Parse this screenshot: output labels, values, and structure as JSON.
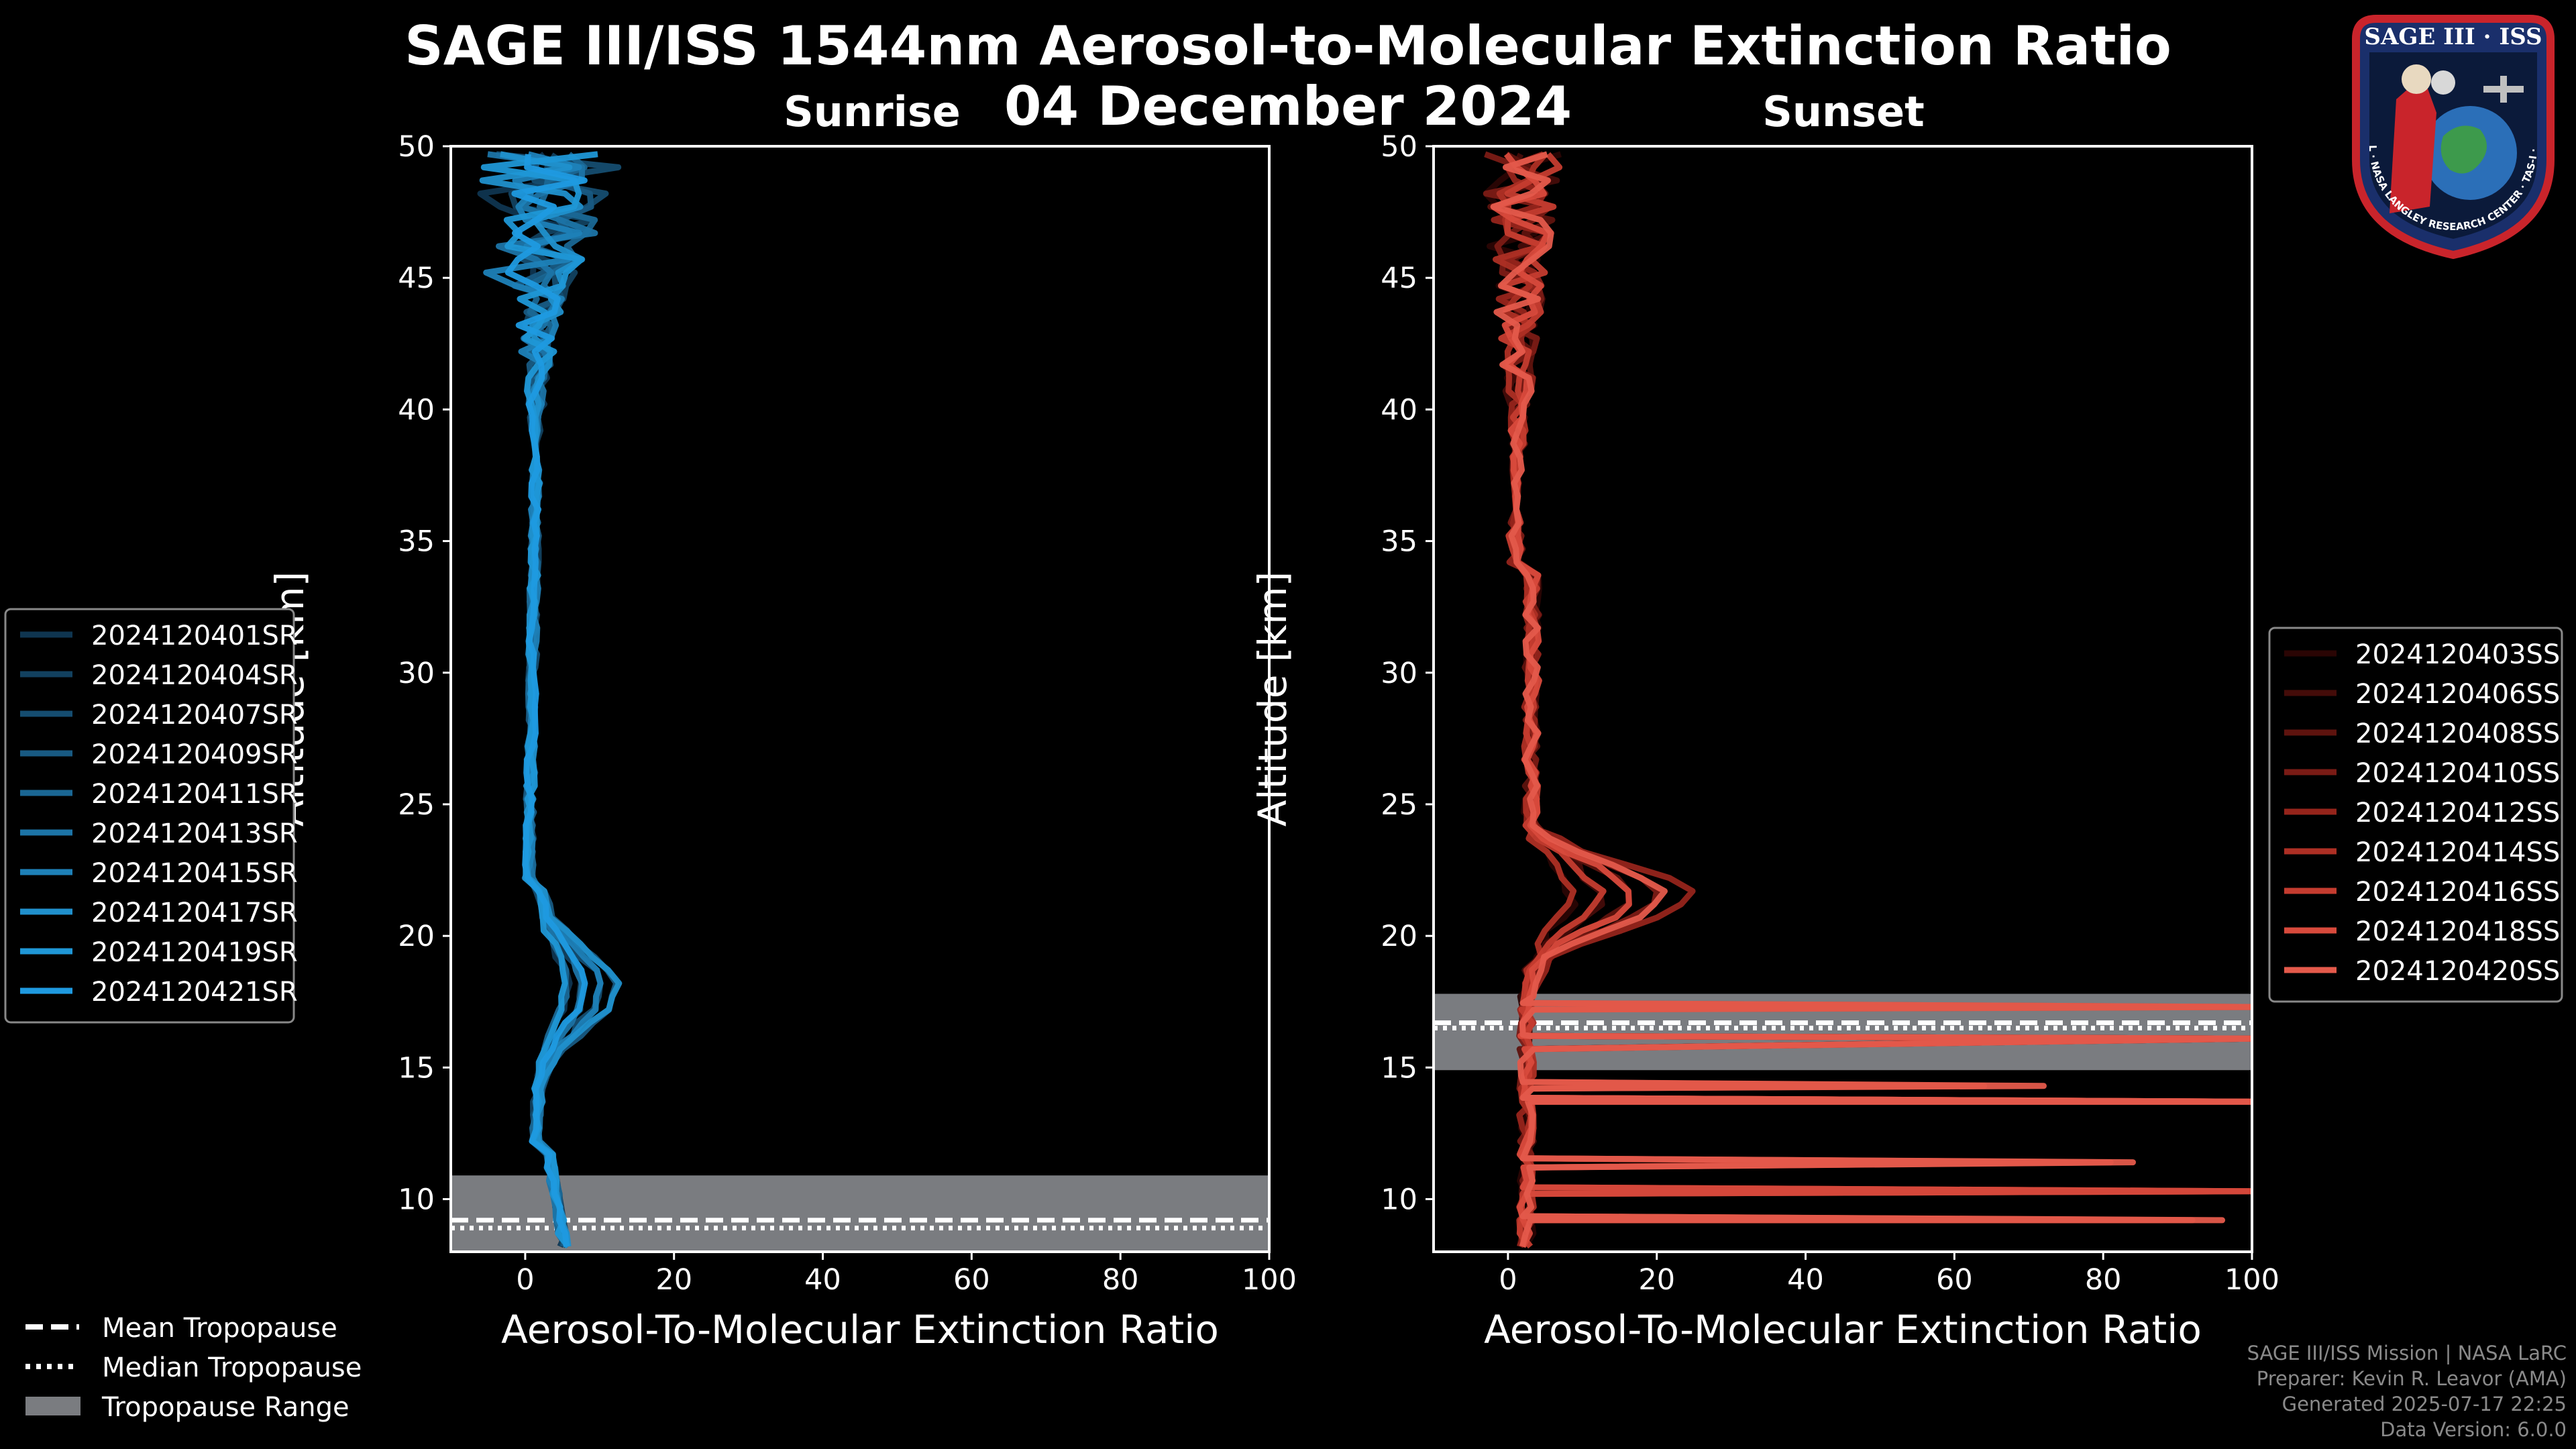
{
  "title": "SAGE III/ISS 1544nm Aerosol-to-Molecular Extinction Ratio",
  "date": "04 December 2024",
  "logo": {
    "top_text": "SAGE III · ISS",
    "ring_text": "BALL · NASA LANGLEY RESEARCH CENTER · TAS-I · ESA"
  },
  "credits": {
    "line1": "SAGE III/ISS Mission | NASA LaRC",
    "line2": "Preparer: Kevin R. Leavor (AMA)",
    "line3": "Generated 2025-07-17 22:25",
    "line4": "Data Version: 6.0.0"
  },
  "tropopause_legend": [
    {
      "label": "Mean Tropopause",
      "style": "dashed"
    },
    {
      "label": "Median Tropopause",
      "style": "dotted"
    },
    {
      "label": "Tropopause Range",
      "style": "patch"
    }
  ],
  "chart_data": [
    {
      "type": "line",
      "panel": "sunrise",
      "title": "Sunrise",
      "xlabel": "Aerosol-To-Molecular Extinction Ratio",
      "ylabel": "Altitude [km]",
      "xlim": [
        -10,
        100
      ],
      "ylim": [
        8,
        50
      ],
      "xticks": [
        0,
        20,
        40,
        60,
        80,
        100
      ],
      "yticks": [
        10,
        15,
        20,
        25,
        30,
        35,
        40,
        45,
        50
      ],
      "tropopause": {
        "range": [
          8,
          10.9
        ],
        "mean": 9.2,
        "median": 8.9
      },
      "legend_position": "left-outside",
      "series_labels": [
        "2024120401SR",
        "2024120404SR",
        "2024120407SR",
        "2024120409SR",
        "2024120411SR",
        "2024120413SR",
        "2024120415SR",
        "2024120417SR",
        "2024120419SR",
        "2024120421SR"
      ],
      "colors": [
        "#0f3550",
        "#12415f",
        "#154d70",
        "#185a82",
        "#1a6794",
        "#1c74a6",
        "#1e81b8",
        "#2090cc",
        "#1f97d6",
        "#1f9ae0"
      ]
    },
    {
      "type": "line",
      "panel": "sunset",
      "title": "Sunset",
      "xlabel": "Aerosol-To-Molecular Extinction Ratio",
      "ylabel": "Altitude [km]",
      "xlim": [
        -10,
        100
      ],
      "ylim": [
        8,
        50
      ],
      "xticks": [
        0,
        20,
        40,
        60,
        80,
        100
      ],
      "yticks": [
        10,
        15,
        20,
        25,
        30,
        35,
        40,
        45,
        50
      ],
      "tropopause": {
        "range": [
          14.9,
          17.8
        ],
        "mean": 16.7,
        "median": 16.5
      },
      "legend_position": "right-outside",
      "series_labels": [
        "2024120403SS",
        "2024120406SS",
        "2024120408SS",
        "2024120410SS",
        "2024120412SS",
        "2024120414SS",
        "2024120416SS",
        "2024120418SS",
        "2024120420SS"
      ],
      "colors": [
        "#2a0504",
        "#440c09",
        "#5e130e",
        "#7a1b15",
        "#95241b",
        "#ad2f24",
        "#c43c2f",
        "#d84a3c",
        "#e45a4b"
      ]
    }
  ]
}
